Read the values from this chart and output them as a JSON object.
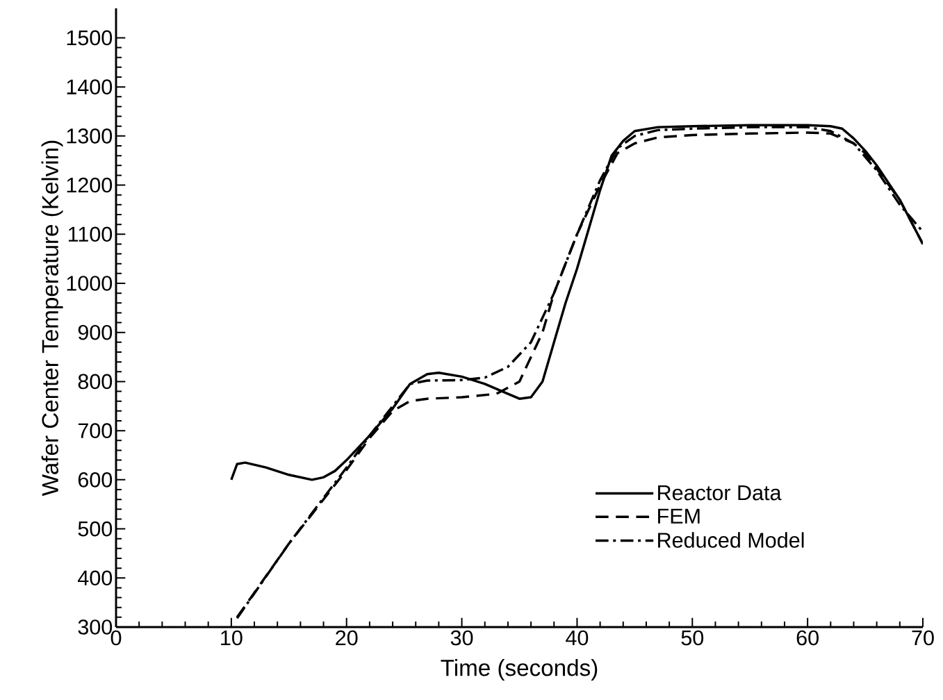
{
  "chart_data": {
    "type": "line",
    "xlabel": "Time (seconds)",
    "ylabel": "Wafer Center Temperature (Kelvin)",
    "xlim": [
      0,
      70
    ],
    "ylim": [
      300,
      1560
    ],
    "xticks": [
      0,
      10,
      20,
      30,
      40,
      50,
      60,
      70
    ],
    "yticks": [
      300,
      400,
      500,
      600,
      700,
      800,
      900,
      1000,
      1100,
      1200,
      1300,
      1400,
      1500
    ],
    "grid": false,
    "legend": "bottom right",
    "marker": "none",
    "series": [
      {
        "name": "Reactor Data",
        "color": "#000000",
        "line_style": "solid",
        "x": [
          10,
          10.5,
          11.2,
          13,
          15,
          17,
          18,
          19,
          20,
          22,
          24,
          25.5,
          27,
          28,
          30,
          32,
          34,
          35,
          36,
          37,
          38,
          39,
          40,
          41,
          42,
          43,
          44,
          45,
          47,
          50,
          55,
          60,
          62,
          63,
          64,
          65,
          66,
          68,
          70
        ],
        "values": [
          600,
          632,
          635,
          625,
          610,
          600,
          605,
          618,
          640,
          690,
          745,
          795,
          815,
          818,
          810,
          795,
          775,
          765,
          768,
          800,
          880,
          960,
          1030,
          1110,
          1190,
          1260,
          1290,
          1310,
          1318,
          1320,
          1322,
          1322,
          1320,
          1315,
          1295,
          1270,
          1240,
          1170,
          1080
        ]
      },
      {
        "name": "FEM",
        "color": "#000000",
        "line_style": "dashed",
        "x": [
          10.5,
          15,
          20,
          22,
          24,
          25.5,
          27,
          30,
          33,
          35,
          37,
          38,
          40,
          42,
          43.5,
          45,
          47,
          50,
          55,
          60,
          62,
          63,
          64,
          65,
          68,
          70
        ],
        "values": [
          320,
          470,
          620,
          685,
          740,
          760,
          765,
          768,
          775,
          800,
          900,
          980,
          1100,
          1200,
          1265,
          1285,
          1297,
          1302,
          1305,
          1307,
          1305,
          1295,
          1285,
          1265,
          1170,
          1080
        ]
      },
      {
        "name": "Reduced Model",
        "color": "#000000",
        "line_style": "dashdot",
        "x": [
          10.5,
          15,
          20,
          22,
          24,
          25.5,
          27,
          30,
          32,
          34,
          36,
          38,
          40,
          42,
          43.5,
          45,
          47,
          50,
          55,
          60,
          62,
          64,
          66,
          68,
          70
        ],
        "values": [
          318,
          470,
          625,
          690,
          750,
          795,
          802,
          803,
          808,
          830,
          880,
          980,
          1100,
          1210,
          1275,
          1300,
          1312,
          1315,
          1318,
          1318,
          1310,
          1285,
          1230,
          1160,
          1105
        ]
      }
    ]
  }
}
